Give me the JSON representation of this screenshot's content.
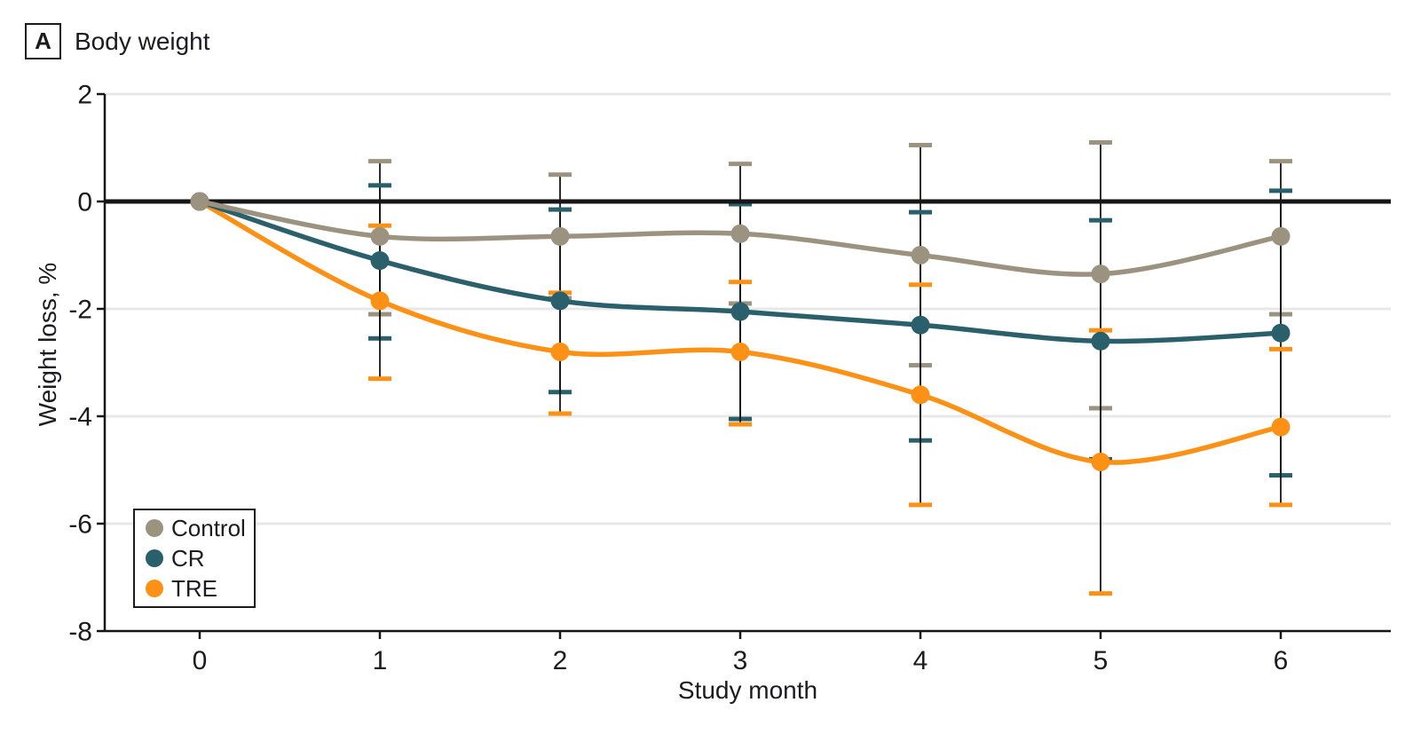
{
  "panel_label": "A",
  "title": "Body weight",
  "colors": {
    "text": "#1B1B22",
    "grid": "#E8E8E8",
    "axis": "#161616",
    "zero_line": "#161616",
    "error_bar": "#161616"
  },
  "legend": {
    "position": "lower-left",
    "items": [
      "Control",
      "CR",
      "TRE"
    ]
  },
  "chart_data": {
    "type": "line",
    "title": "Body weight",
    "xlabel": "Study month",
    "ylabel": "Weight loss, %",
    "x": [
      0,
      1,
      2,
      3,
      4,
      5,
      6
    ],
    "xtick_labels": [
      "0",
      "1",
      "2",
      "3",
      "4",
      "5",
      "6"
    ],
    "ytick_labels": [
      "2",
      "0",
      "-2",
      "-4",
      "-6",
      "-8"
    ],
    "yticks": [
      2,
      0,
      -2,
      -4,
      -6,
      -8
    ],
    "ylim": [
      -8,
      2
    ],
    "grid": true,
    "zero_line": true,
    "error_bars": "95% CI, colored caps per group",
    "series": [
      {
        "name": "Control",
        "color": "#9C9280",
        "values": [
          0,
          -0.65,
          -0.65,
          -0.6,
          -1.0,
          -1.35,
          -0.65
        ],
        "ci_upper": [
          null,
          0.75,
          0.5,
          0.7,
          1.05,
          1.1,
          0.75
        ],
        "ci_lower": [
          null,
          -2.1,
          -1.8,
          -1.9,
          -3.05,
          -3.85,
          -2.1
        ]
      },
      {
        "name": "CR",
        "color": "#2A5F6C",
        "values": [
          0,
          -1.1,
          -1.85,
          -2.05,
          -2.3,
          -2.6,
          -2.45
        ],
        "ci_upper": [
          null,
          0.3,
          -0.15,
          -0.05,
          -0.2,
          -0.35,
          0.2
        ],
        "ci_lower": [
          null,
          -2.55,
          -3.55,
          -4.05,
          -4.45,
          -4.8,
          -5.1
        ]
      },
      {
        "name": "TRE",
        "color": "#FC9116",
        "values": [
          0,
          -1.85,
          -2.8,
          -2.8,
          -3.6,
          -4.85,
          -4.2
        ],
        "ci_upper": [
          null,
          -0.45,
          -1.7,
          -1.5,
          -1.55,
          -2.4,
          -2.75
        ],
        "ci_lower": [
          null,
          -3.3,
          -3.95,
          -4.15,
          -5.65,
          -7.3,
          -5.65
        ]
      }
    ]
  }
}
